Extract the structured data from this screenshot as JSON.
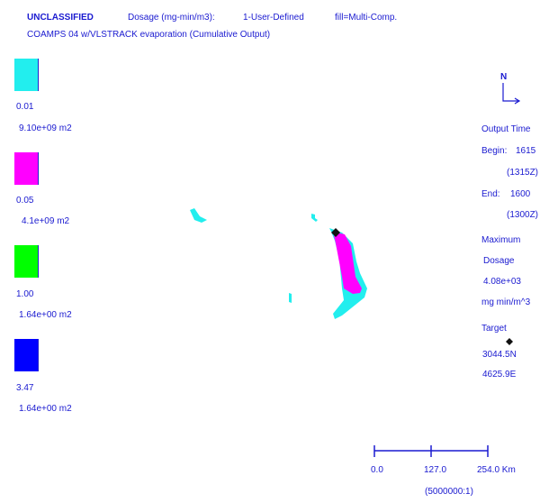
{
  "header": {
    "classification": "UNCLASSIFIED",
    "dosage_label": "Dosage (mg-min/m3):",
    "user_defined": "1-User-Defined",
    "fill": "fill=Multi-Comp.",
    "subtitle": "COAMPS 04 w/VLSTRACK evaporation (Cumulative Output)"
  },
  "legend": [
    {
      "value": "0.01",
      "area": "9.10e+09 m2",
      "color": "#22eeee"
    },
    {
      "value": "0.05",
      "area": "4.1e+09 m2",
      "color": "#ff00ff"
    },
    {
      "value": "1.00",
      "area": "1.64e+00 m2",
      "color": "#00ff00"
    },
    {
      "value": "3.47",
      "area": "1.64e+00 m2",
      "color": "#0000ff"
    }
  ],
  "north": {
    "label": "N",
    "icon": "north-arrow-icon"
  },
  "info": {
    "output_time": "Output Time",
    "begin_label": "Begin:",
    "begin": "1615",
    "begin_z": "(1315Z)",
    "end_label": "End:",
    "end": "1600",
    "end_z": "(1300Z)",
    "maximum": "Maximum",
    "dosage": "Dosage",
    "max_value": "4.08e+03",
    "units": "mg  min/m^3",
    "target": "Target",
    "target_icon": "diamond-icon",
    "lat": "3044.5N",
    "lon": "4625.9E"
  },
  "scale": {
    "ticks": [
      "0.0",
      "127.0",
      "254.0 Km"
    ],
    "ratio": "(5000000:1)"
  }
}
